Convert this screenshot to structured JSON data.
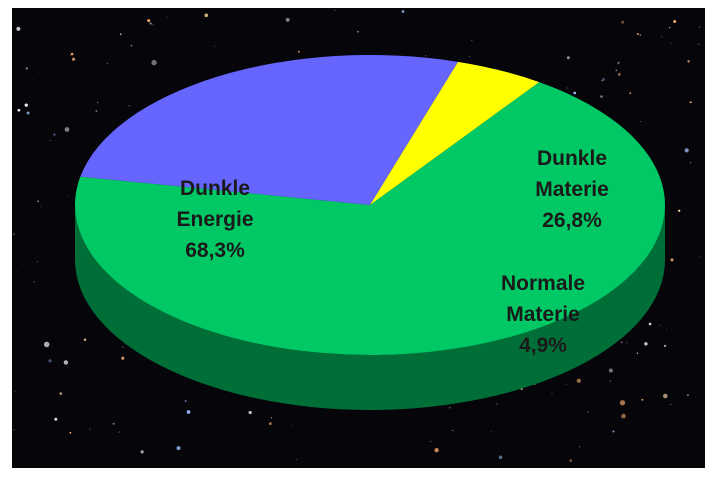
{
  "chart_data": {
    "type": "pie3d",
    "categories": [
      "Dunkle Energie",
      "Dunkle Materie",
      "Normale Materie"
    ],
    "values": [
      68.3,
      26.8,
      4.9
    ],
    "value_labels": [
      "68,3%",
      "26,8%",
      "4,9%"
    ],
    "colors": [
      "#00c864",
      "#6666ff",
      "#ffff00"
    ]
  }
}
